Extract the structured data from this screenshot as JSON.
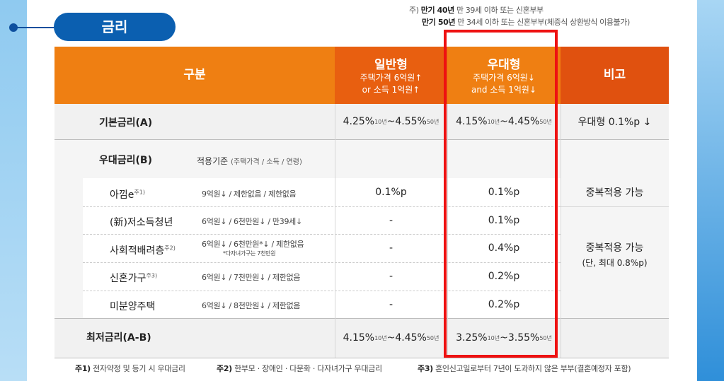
{
  "section_title": "금리",
  "notes": {
    "line1_prefix": "주)",
    "line1_bold": "만기 40년",
    "line1_rest": "만 39세 이하 또는 신혼부부",
    "line2_bold": "만기 50년",
    "line2_rest": "만 34세 이하 또는 신혼부부(체증식 상환방식 이용불가)"
  },
  "header": {
    "category": "구분",
    "general": {
      "title": "일반형",
      "line1": "주택가격 6억원↑",
      "line2": "or 소득 1억원↑"
    },
    "preferred": {
      "title": "우대형",
      "line1": "주택가격 6억원↓",
      "line2": "and 소득 1억원↓"
    },
    "remarks": "비고"
  },
  "base_rate": {
    "label": "기본금리(A)",
    "general_a": "4.25%",
    "general_a_sup": "10년",
    "general_sep": " ~ ",
    "general_b": "4.55%",
    "general_b_sup": "50년",
    "preferred_a": "4.15%",
    "preferred_a_sup": "10년",
    "preferred_sep": " ~ ",
    "preferred_b": "4.45%",
    "preferred_b_sup": "50년",
    "remarks": "우대형 0.1%p ↓"
  },
  "pref_rate": {
    "label": "우대금리(B)",
    "criteria_label": "적용기준",
    "criteria_detail": "(주택가격 / 소득 / 연령)"
  },
  "items": [
    {
      "name": "아낌e",
      "sup": "주1)",
      "criteria": "9억원↓ / 제한없음 / 제한없음",
      "general": "0.1%p",
      "preferred": "0.1%p"
    },
    {
      "name": "(新)저소득청년",
      "sup": "",
      "criteria": "6억원↓ / 6천만원↓ / 만39세↓",
      "general": "-",
      "preferred": "0.1%p"
    },
    {
      "name": "사회적배려층",
      "sup": "주2)",
      "criteria": "6억원↓ / 6천만원*↓ / 제한없음",
      "criteria_sub": "*다자녀가구는 7천만원",
      "general": "-",
      "preferred": "0.4%p"
    },
    {
      "name": "신혼가구",
      "sup": "주3)",
      "criteria": "6억원↓ / 7천만원↓ / 제한없음",
      "general": "-",
      "preferred": "0.2%p"
    },
    {
      "name": "미분양주택",
      "sup": "",
      "criteria": "6억원↓ / 8천만원↓ / 제한없음",
      "general": "-",
      "preferred": "0.2%p"
    }
  ],
  "pref_remarks": {
    "first": "중복적용 가능",
    "second": "중복적용 가능",
    "second_sub": "(단, 최대 0.8%p)"
  },
  "min_rate": {
    "label": "최저금리(A-B)",
    "general_a": "4.15%",
    "general_a_sup": "10년",
    "general_sep": " ~ ",
    "general_b": "4.45%",
    "general_b_sup": "50년",
    "preferred_a": "3.25%",
    "preferred_a_sup": "10년",
    "preferred_sep": " ~ ",
    "preferred_b": "3.55%",
    "preferred_b_sup": "50년"
  },
  "footnotes": {
    "n1_label": "주1)",
    "n1_text": "전자약정 및 등기 시 우대금리",
    "n2_label": "주2)",
    "n2_text": "한부모 · 장애인 · 다문화 · 다자녀가구 우대금리",
    "n3_label": "주3)",
    "n3_text": "혼인신고일로부터 7년이 도과하지 않은 부부(결혼예정자 포함)"
  },
  "colors": {
    "header_orange": "#ef7f12",
    "header_dark_orange": "#e0510f",
    "section_pill_blue": "#0b5fb0",
    "highlight_red": "#ee1111"
  }
}
